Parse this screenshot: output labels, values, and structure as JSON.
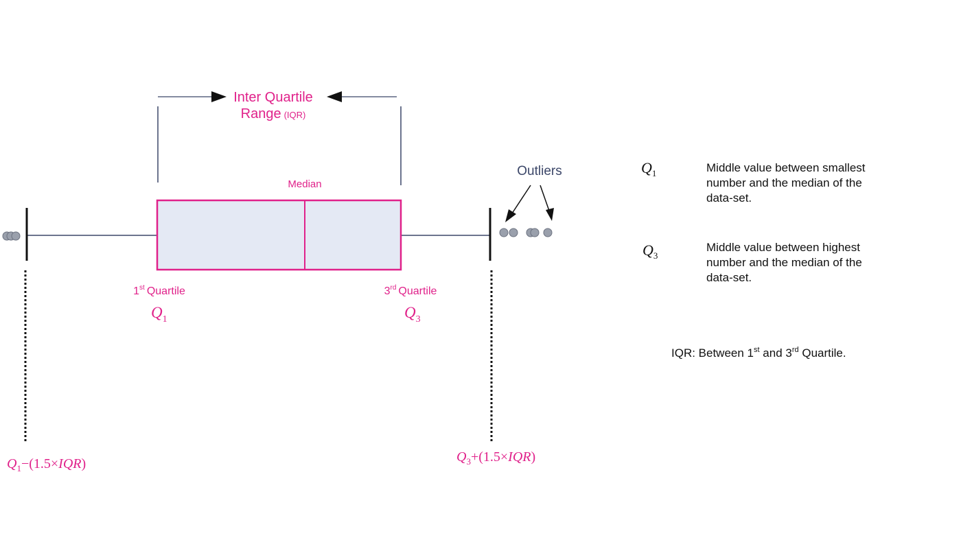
{
  "colors": {
    "accent": "#e0218a",
    "line": "#3b4668",
    "box_fill": "#e4e9f4",
    "outlier_fill": "#9aa0ac",
    "text": "#111111"
  },
  "iqr_label": {
    "line1": "Inter Quartile",
    "line2": "Range",
    "abbrev": "(IQR)"
  },
  "median_label": "Median",
  "outliers_label": "Outliers",
  "q1_label": {
    "ordinal": "1",
    "suffix": "st",
    "word": "Quartile",
    "symbol": "Q",
    "subscript": "1"
  },
  "q3_label": {
    "ordinal": "3",
    "suffix": "rd",
    "word": "Quartile",
    "symbol": "Q",
    "subscript": "3"
  },
  "lower_fence": {
    "symbol": "Q",
    "subscript": "1",
    "expression": "−(1.5×",
    "iqr": "IQR",
    "close": ")"
  },
  "upper_fence": {
    "symbol": "Q",
    "subscript": "3",
    "expression": "+(1.5×",
    "iqr": "IQR",
    "close": ")"
  },
  "definitions": [
    {
      "symbol": "Q",
      "subscript": "1",
      "lines": [
        "Middle value between smallest",
        "number and the median of the",
        "data-set."
      ]
    },
    {
      "symbol": "Q",
      "subscript": "3",
      "lines": [
        "Middle value between highest",
        "number and the median of the",
        "data-set."
      ]
    }
  ],
  "iqr_note": {
    "prefix": "IQR: Between 1",
    "sup1": "st",
    "middle": " and 3",
    "sup2": "rd",
    "suffix": " Quartile."
  }
}
